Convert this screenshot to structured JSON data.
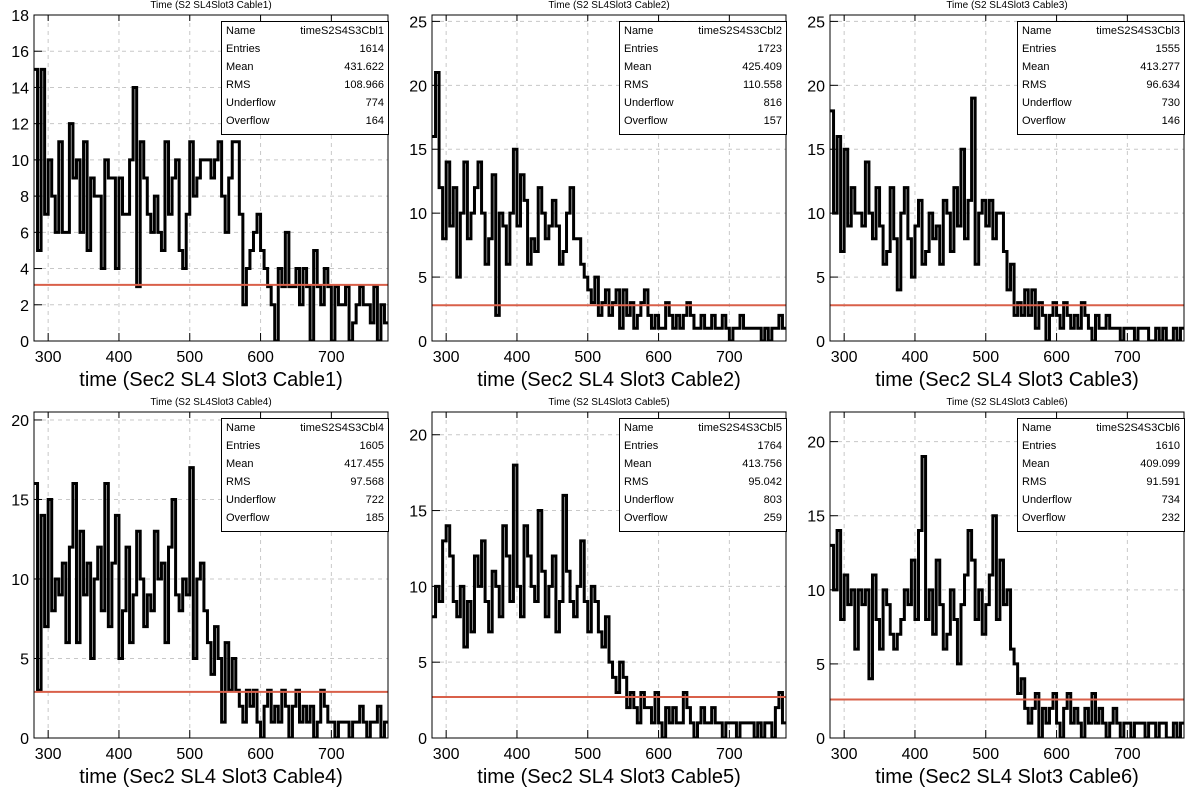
{
  "colors": {
    "histogram": "#000000",
    "fit_line": "#d9604a",
    "grid": "#c8c8c8",
    "frame": "#000000"
  },
  "stats_labels": [
    "Name",
    "Entries",
    "Mean",
    "RMS",
    "Underflow",
    "Overflow"
  ],
  "chart_data": [
    {
      "type": "histogram",
      "title": "Time (S2 SL4Slot3 Cable1)",
      "xlabel": "time (Sec2 SL4 Slot3 Cable1)",
      "xlim": [
        280,
        780
      ],
      "ylim": [
        0,
        18
      ],
      "xticks": [
        300,
        400,
        500,
        600,
        700
      ],
      "yticks": [
        0,
        2,
        4,
        6,
        8,
        10,
        12,
        14,
        16,
        18
      ],
      "fit_level": 3.1,
      "stats": {
        "Name": "timeS2S4S3Cbl1",
        "Entries": "1614",
        "Mean": "431.622",
        "RMS": "108.966",
        "Underflow": "774",
        "Overflow": "164"
      },
      "bin_width": 5,
      "values": [
        15,
        5,
        15,
        7,
        10,
        8,
        6,
        11,
        6,
        6,
        12,
        9,
        10,
        6,
        11,
        5,
        9,
        8,
        8,
        4,
        10,
        9,
        9,
        4,
        9,
        7,
        7,
        10,
        14,
        3,
        11,
        9,
        7,
        6,
        8,
        6,
        5,
        11,
        7,
        9,
        10,
        5,
        4,
        7,
        11,
        8,
        9,
        10,
        10,
        10,
        9,
        10,
        11,
        8,
        6,
        9,
        11,
        11,
        7,
        2,
        4,
        5,
        6,
        7,
        5,
        4,
        3,
        2,
        0,
        4,
        3,
        6,
        3,
        3,
        4,
        2,
        4,
        3,
        0,
        5,
        3,
        2,
        4,
        3,
        0,
        3,
        2,
        2,
        3,
        0,
        1,
        2,
        3,
        2,
        2,
        1,
        3,
        0,
        2,
        1
      ]
    },
    {
      "type": "histogram",
      "title": "Time (S2 SL4Slot3 Cable2)",
      "xlabel": "time (Sec2 SL4 Slot3 Cable2)",
      "xlim": [
        280,
        780
      ],
      "ylim": [
        0,
        25.5
      ],
      "xticks": [
        300,
        400,
        500,
        600,
        700
      ],
      "yticks": [
        0,
        5,
        10,
        15,
        20,
        25
      ],
      "fit_level": 2.8,
      "stats": {
        "Name": "timeS2S4S3Cbl2",
        "Entries": "1723",
        "Mean": "425.409",
        "RMS": "110.558",
        "Underflow": "816",
        "Overflow": "157"
      },
      "bin_width": 5,
      "values": [
        16,
        21,
        12,
        8,
        14,
        9,
        12,
        5,
        10,
        14,
        8,
        10,
        12,
        14,
        10,
        6,
        8,
        13,
        2,
        10,
        9,
        6,
        10,
        15,
        9,
        13,
        11,
        6,
        8,
        7,
        12,
        10,
        8,
        9,
        11,
        9,
        6,
        7,
        10,
        12,
        8,
        8,
        6,
        5,
        4,
        3,
        5,
        2,
        3,
        4,
        2,
        3,
        4,
        1,
        4,
        2,
        3,
        1,
        2,
        3,
        4,
        2,
        1,
        2,
        1,
        1,
        3,
        2,
        1,
        2,
        1,
        2,
        3,
        2,
        1,
        1,
        2,
        1,
        1,
        2,
        1,
        1,
        2,
        1,
        0,
        1,
        1,
        2,
        1,
        1,
        1,
        1,
        1,
        0,
        1,
        0,
        1,
        1,
        2,
        1
      ]
    },
    {
      "type": "histogram",
      "title": "Time (S2 SL4Slot3 Cable3)",
      "xlabel": "time (Sec2 SL4 Slot3 Cable3)",
      "xlim": [
        280,
        780
      ],
      "ylim": [
        0,
        25.5
      ],
      "xticks": [
        300,
        400,
        500,
        600,
        700
      ],
      "yticks": [
        0,
        5,
        10,
        15,
        20,
        25
      ],
      "fit_level": 2.8,
      "stats": {
        "Name": "timeS2S4S3Cbl3",
        "Entries": "1555",
        "Mean": "413.277",
        "RMS": "96.634",
        "Underflow": "730",
        "Overflow": "146"
      },
      "bin_width": 5,
      "values": [
        18,
        10,
        16,
        7,
        15,
        9,
        12,
        10,
        10,
        9,
        14,
        10,
        8,
        12,
        9,
        6,
        7,
        12,
        8,
        4,
        10,
        12,
        8,
        5,
        9,
        11,
        6,
        7,
        10,
        8,
        9,
        6,
        11,
        10,
        7,
        12,
        9,
        15,
        8,
        11,
        19,
        6,
        10,
        11,
        9,
        11,
        8,
        10,
        10,
        7,
        4,
        6,
        2,
        3,
        2,
        4,
        2,
        4,
        1,
        3,
        2,
        0,
        2,
        3,
        2,
        1,
        3,
        2,
        1,
        2,
        1,
        3,
        2,
        1,
        0,
        2,
        1,
        1,
        2,
        1,
        1,
        1,
        0,
        1,
        1,
        1,
        0,
        1,
        1,
        1,
        0,
        0,
        1,
        0,
        1,
        0,
        0,
        1,
        0,
        1
      ]
    },
    {
      "type": "histogram",
      "title": "Time (S2 SL4Slot3 Cable4)",
      "xlabel": "time (Sec2 SL4 Slot3 Cable4)",
      "xlim": [
        280,
        780
      ],
      "ylim": [
        0,
        20.5
      ],
      "xticks": [
        300,
        400,
        500,
        600,
        700
      ],
      "yticks": [
        0,
        5,
        10,
        15,
        20
      ],
      "fit_level": 2.9,
      "stats": {
        "Name": "timeS2S4S3Cbl4",
        "Entries": "1605",
        "Mean": "417.455",
        "RMS": "97.568",
        "Underflow": "722",
        "Overflow": "185"
      },
      "bin_width": 5,
      "values": [
        16,
        3,
        14,
        7,
        15,
        8,
        10,
        9,
        11,
        6,
        12,
        16,
        6,
        13,
        9,
        11,
        5,
        10,
        12,
        8,
        16,
        7,
        11,
        14,
        5,
        8,
        12,
        6,
        9,
        13,
        10,
        7,
        9,
        8,
        13,
        10,
        11,
        6,
        12,
        15,
        9,
        8,
        10,
        9,
        17,
        5,
        10,
        11,
        8,
        6,
        4,
        7,
        5,
        1,
        6,
        3,
        5,
        3,
        2,
        1,
        3,
        2,
        3,
        1,
        0,
        2,
        3,
        1,
        2,
        1,
        3,
        2,
        0,
        2,
        3,
        1,
        2,
        1,
        2,
        0,
        1,
        3,
        2,
        1,
        1,
        0,
        1,
        1,
        1,
        0,
        1,
        1,
        2,
        1,
        0,
        1,
        1,
        2,
        0,
        1
      ]
    },
    {
      "type": "histogram",
      "title": "Time (S2 SL4Slot3 Cable5)",
      "xlabel": "time (Sec2 SL4 Slot3 Cable5)",
      "xlim": [
        280,
        780
      ],
      "ylim": [
        0,
        21.5
      ],
      "xticks": [
        300,
        400,
        500,
        600,
        700
      ],
      "yticks": [
        0,
        5,
        10,
        15,
        20
      ],
      "fit_level": 2.7,
      "stats": {
        "Name": "timeS2S4S3Cbl5",
        "Entries": "1764",
        "Mean": "413.756",
        "RMS": "95.042",
        "Underflow": "803",
        "Overflow": "259"
      },
      "bin_width": 5,
      "values": [
        8,
        10,
        9,
        13,
        14,
        12,
        9,
        8,
        10,
        6,
        9,
        7,
        12,
        10,
        13,
        9,
        7,
        11,
        10,
        8,
        14,
        12,
        9,
        18,
        10,
        8,
        14,
        12,
        10,
        9,
        15,
        11,
        8,
        10,
        12,
        7,
        9,
        16,
        11,
        9,
        8,
        10,
        13,
        9,
        7,
        10,
        9,
        7,
        6,
        8,
        5,
        4,
        3,
        5,
        4,
        2,
        3,
        2,
        1,
        3,
        2,
        2,
        1,
        3,
        1,
        0,
        2,
        1,
        2,
        1,
        1,
        3,
        2,
        1,
        0,
        1,
        2,
        1,
        1,
        2,
        1,
        1,
        0,
        1,
        1,
        1,
        0,
        1,
        1,
        1,
        1,
        0,
        1,
        0,
        1,
        1,
        0,
        2,
        3,
        1
      ]
    },
    {
      "type": "histogram",
      "title": "Time (S2 SL4Slot3 Cable6)",
      "xlabel": "time (Sec2 SL4 Slot3 Cable6)",
      "xlim": [
        280,
        780
      ],
      "ylim": [
        0,
        22
      ],
      "xticks": [
        300,
        400,
        500,
        600,
        700
      ],
      "yticks": [
        0,
        5,
        10,
        15,
        20
      ],
      "fit_level": 2.6,
      "stats": {
        "Name": "timeS2S4S3Cbl6",
        "Entries": "1610",
        "Mean": "409.099",
        "RMS": "91.591",
        "Underflow": "734",
        "Overflow": "232"
      },
      "bin_width": 5,
      "values": [
        13,
        10,
        14,
        8,
        11,
        9,
        10,
        6,
        10,
        9,
        10,
        4,
        11,
        8,
        6,
        10,
        9,
        7,
        6,
        7,
        8,
        10,
        9,
        12,
        8,
        14,
        19,
        8,
        10,
        7,
        12,
        9,
        6,
        7,
        10,
        8,
        5,
        9,
        11,
        14,
        12,
        8,
        10,
        7,
        9,
        11,
        15,
        8,
        12,
        9,
        10,
        6,
        5,
        3,
        4,
        2,
        1,
        2,
        3,
        0,
        2,
        1,
        2,
        3,
        1,
        0,
        2,
        3,
        1,
        2,
        1,
        0,
        2,
        1,
        3,
        1,
        2,
        1,
        0,
        1,
        2,
        1,
        0,
        1,
        1,
        0,
        1,
        1,
        1,
        0,
        1,
        1,
        0,
        1,
        1,
        0,
        0,
        1,
        0,
        1
      ]
    }
  ]
}
